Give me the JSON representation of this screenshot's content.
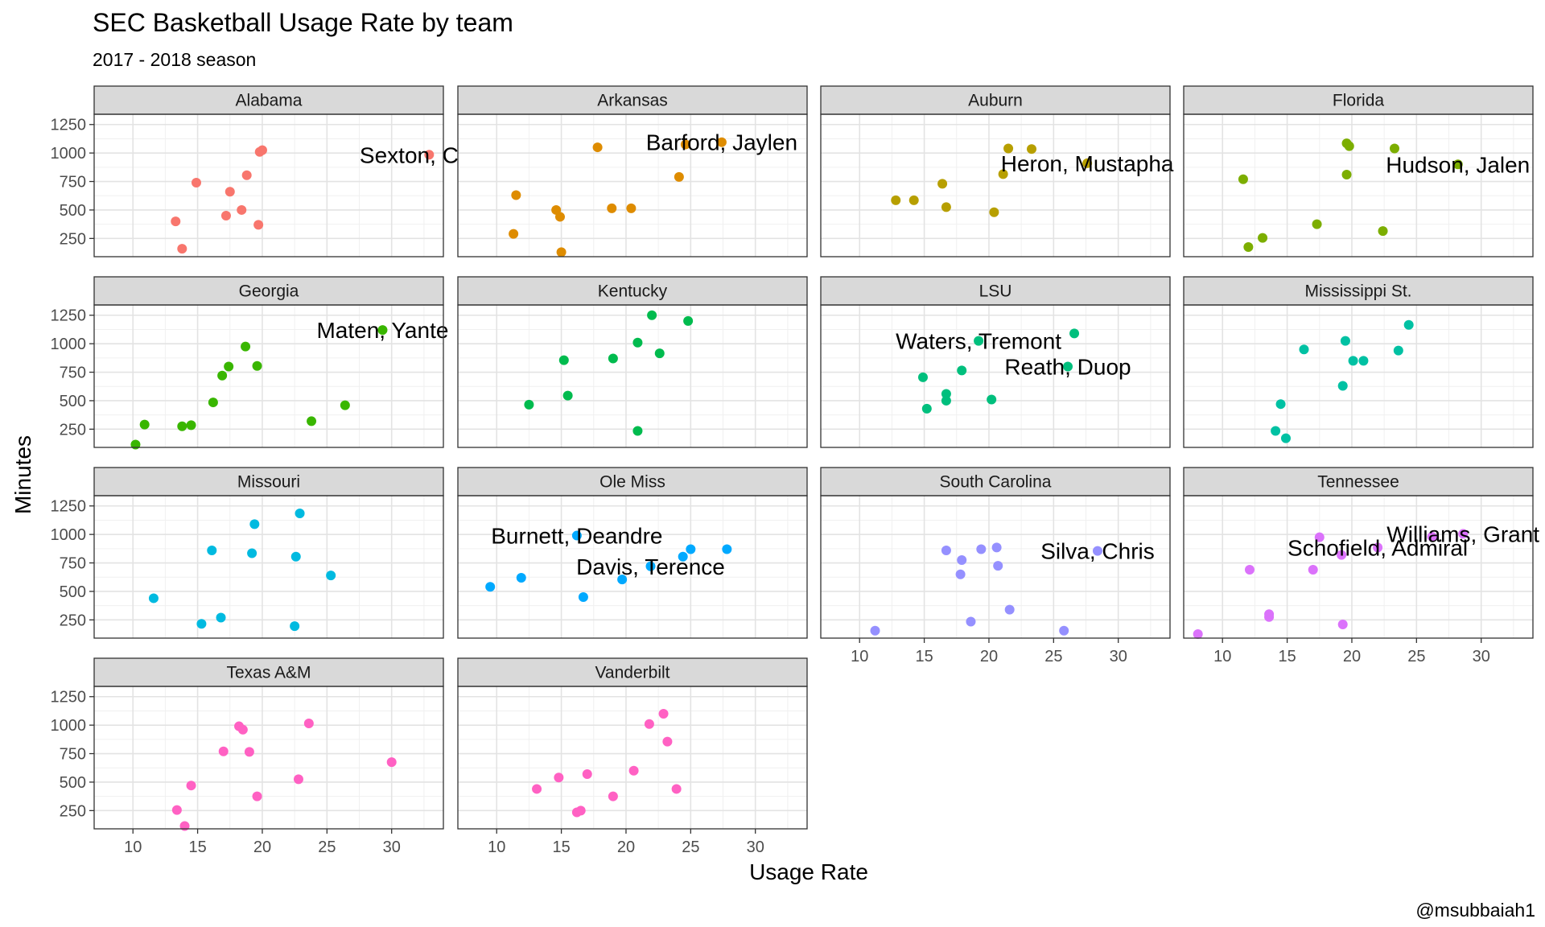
{
  "chart_data": {
    "type": "scatter",
    "title": "SEC Basketball Usage Rate by team",
    "subtitle": "2017 - 2018 season",
    "xlabel": "Usage Rate",
    "ylabel": "Minutes",
    "caption": "@msubbaiah1",
    "xlim": [
      7,
      34
    ],
    "ylim": [
      90,
      1340
    ],
    "xticks": [
      10,
      15,
      20,
      25,
      30
    ],
    "yticks": [
      250,
      500,
      750,
      1000,
      1250
    ],
    "grid": true,
    "legend": "none",
    "facets": [
      {
        "team": "Alabama",
        "color": "#F8766D",
        "points": [
          [
            13.3,
            400
          ],
          [
            13.8,
            160
          ],
          [
            14.9,
            740
          ],
          [
            17.2,
            450
          ],
          [
            17.5,
            660
          ],
          [
            18.4,
            500
          ],
          [
            18.8,
            805
          ],
          [
            19.7,
            370
          ],
          [
            19.8,
            1010
          ],
          [
            20.0,
            1025
          ],
          [
            32.9,
            985
          ]
        ],
        "labels": [
          {
            "text": "Sexton, Collin",
            "x": 32.9,
            "y": 985
          }
        ]
      },
      {
        "team": "Arkansas",
        "color": "#DE8C00",
        "points": [
          [
            11.3,
            290
          ],
          [
            11.5,
            630
          ],
          [
            14.6,
            500
          ],
          [
            14.9,
            440
          ],
          [
            15.0,
            130
          ],
          [
            17.8,
            1050
          ],
          [
            18.9,
            515
          ],
          [
            20.4,
            515
          ],
          [
            24.1,
            790
          ],
          [
            24.6,
            1075
          ],
          [
            27.4,
            1095
          ]
        ],
        "labels": [
          {
            "text": "Barford, Jaylen",
            "x": 27.4,
            "y": 1095
          }
        ]
      },
      {
        "team": "Auburn",
        "color": "#B79F00",
        "points": [
          [
            12.8,
            585
          ],
          [
            14.2,
            585
          ],
          [
            16.4,
            730
          ],
          [
            16.7,
            525
          ],
          [
            20.4,
            480
          ],
          [
            21.1,
            815
          ],
          [
            21.5,
            1040
          ],
          [
            23.3,
            1035
          ],
          [
            27.6,
            910
          ]
        ],
        "labels": [
          {
            "text": "Heron, Mustapha",
            "x": 27.6,
            "y": 910
          }
        ]
      },
      {
        "team": "Florida",
        "color": "#7CAE00",
        "points": [
          [
            11.6,
            770
          ],
          [
            12.0,
            175
          ],
          [
            13.1,
            255
          ],
          [
            17.3,
            375
          ],
          [
            19.6,
            1085
          ],
          [
            19.6,
            810
          ],
          [
            19.8,
            1060
          ],
          [
            22.4,
            315
          ],
          [
            23.3,
            1040
          ],
          [
            28.2,
            900
          ]
        ],
        "labels": [
          {
            "text": "Hudson, Jalen",
            "x": 28.2,
            "y": 900
          }
        ]
      },
      {
        "team": "Georgia",
        "color": "#39B600",
        "points": [
          [
            10.2,
            115
          ],
          [
            10.9,
            290
          ],
          [
            13.8,
            275
          ],
          [
            14.5,
            285
          ],
          [
            16.2,
            485
          ],
          [
            16.9,
            720
          ],
          [
            17.4,
            800
          ],
          [
            18.7,
            975
          ],
          [
            19.6,
            805
          ],
          [
            23.8,
            320
          ],
          [
            26.4,
            460
          ],
          [
            29.3,
            1120
          ]
        ],
        "labels": [
          {
            "text": "Maten, Yante",
            "x": 29.3,
            "y": 1120
          }
        ]
      },
      {
        "team": "Kentucky",
        "color": "#00BB4E",
        "points": [
          [
            12.5,
            465
          ],
          [
            15.2,
            855
          ],
          [
            15.5,
            545
          ],
          [
            19.0,
            870
          ],
          [
            20.9,
            1010
          ],
          [
            20.9,
            235
          ],
          [
            22.0,
            1250
          ],
          [
            22.6,
            915
          ],
          [
            24.8,
            1200
          ]
        ],
        "labels": []
      },
      {
        "team": "LSU",
        "color": "#00BF7D",
        "points": [
          [
            14.9,
            705
          ],
          [
            15.2,
            430
          ],
          [
            16.7,
            560
          ],
          [
            16.7,
            500
          ],
          [
            17.9,
            765
          ],
          [
            19.2,
            1025
          ],
          [
            20.2,
            510
          ],
          [
            26.1,
            800
          ],
          [
            26.6,
            1090
          ]
        ],
        "labels": [
          {
            "text": "Waters, Tremont",
            "x": 19.2,
            "y": 1025
          },
          {
            "text": "Reath, Duop",
            "x": 26.1,
            "y": 800
          }
        ]
      },
      {
        "team": "Mississippi St.",
        "color": "#00C1A3",
        "points": [
          [
            14.1,
            235
          ],
          [
            14.5,
            470
          ],
          [
            14.9,
            170
          ],
          [
            16.3,
            950
          ],
          [
            19.3,
            630
          ],
          [
            19.5,
            1025
          ],
          [
            20.1,
            850
          ],
          [
            20.9,
            850
          ],
          [
            23.6,
            940
          ],
          [
            24.4,
            1165
          ]
        ],
        "labels": []
      },
      {
        "team": "Missouri",
        "color": "#00BAE0",
        "points": [
          [
            11.6,
            440
          ],
          [
            15.3,
            215
          ],
          [
            16.1,
            860
          ],
          [
            16.8,
            270
          ],
          [
            19.2,
            835
          ],
          [
            19.4,
            1090
          ],
          [
            22.5,
            195
          ],
          [
            22.6,
            805
          ],
          [
            22.9,
            1185
          ],
          [
            25.3,
            640
          ]
        ],
        "labels": []
      },
      {
        "team": "Ole Miss",
        "color": "#00A9FF",
        "points": [
          [
            9.5,
            540
          ],
          [
            11.9,
            620
          ],
          [
            16.2,
            990
          ],
          [
            16.7,
            450
          ],
          [
            19.7,
            605
          ],
          [
            21.9,
            720
          ],
          [
            24.4,
            805
          ],
          [
            25.0,
            870
          ],
          [
            27.8,
            870
          ]
        ],
        "labels": [
          {
            "text": "Burnett, Deandre",
            "x": 16.2,
            "y": 990
          },
          {
            "text": "Davis, Terence",
            "x": 21.9,
            "y": 720
          }
        ]
      },
      {
        "team": "South Carolina",
        "color": "#9590FF",
        "points": [
          [
            11.2,
            155
          ],
          [
            16.7,
            860
          ],
          [
            17.8,
            650
          ],
          [
            17.9,
            775
          ],
          [
            18.6,
            235
          ],
          [
            19.4,
            870
          ],
          [
            20.6,
            885
          ],
          [
            20.7,
            725
          ],
          [
            21.6,
            340
          ],
          [
            25.8,
            155
          ],
          [
            28.4,
            855
          ]
        ],
        "labels": [
          {
            "text": "Silva, Chris",
            "x": 28.4,
            "y": 855
          }
        ]
      },
      {
        "team": "Tennessee",
        "color": "#DB72FB",
        "points": [
          [
            8.1,
            125
          ],
          [
            12.1,
            690
          ],
          [
            13.6,
            300
          ],
          [
            13.6,
            275
          ],
          [
            17.0,
            690
          ],
          [
            17.5,
            975
          ],
          [
            19.2,
            820
          ],
          [
            19.3,
            210
          ],
          [
            22.0,
            885
          ],
          [
            26.2,
            980
          ],
          [
            28.6,
            1005
          ]
        ],
        "labels": [
          {
            "text": "Williams, Grant",
            "x": 28.6,
            "y": 1005
          },
          {
            "text": "Schofield, Admiral",
            "x": 22.0,
            "y": 885
          }
        ]
      },
      {
        "team": "Texas A&M",
        "color": "#FF61C3",
        "points": [
          [
            13.4,
            255
          ],
          [
            14.0,
            115
          ],
          [
            14.5,
            470
          ],
          [
            17.0,
            770
          ],
          [
            18.2,
            990
          ],
          [
            18.5,
            960
          ],
          [
            19.0,
            765
          ],
          [
            19.6,
            375
          ],
          [
            22.8,
            525
          ],
          [
            23.6,
            1015
          ],
          [
            30.0,
            675
          ]
        ],
        "labels": []
      },
      {
        "team": "Vanderbilt",
        "color": "#FF61C3",
        "points": [
          [
            13.1,
            440
          ],
          [
            14.8,
            540
          ],
          [
            16.2,
            235
          ],
          [
            16.5,
            250
          ],
          [
            17.0,
            570
          ],
          [
            19.0,
            375
          ],
          [
            20.6,
            600
          ],
          [
            21.8,
            1010
          ],
          [
            22.9,
            1100
          ],
          [
            23.2,
            855
          ],
          [
            23.9,
            440
          ]
        ],
        "labels": []
      }
    ]
  }
}
